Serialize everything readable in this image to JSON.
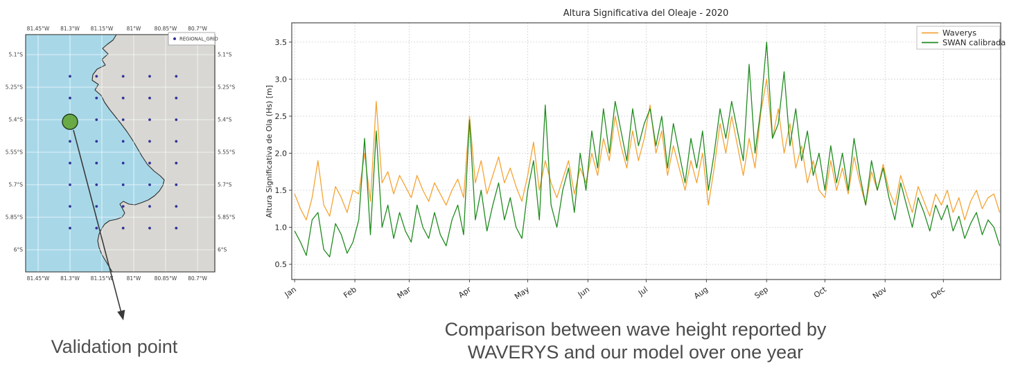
{
  "map": {
    "legend_label": "REGIONAL_GRID",
    "lon_ticks": [
      "81.45°W",
      "81.3°W",
      "81.15°W",
      "81°W",
      "80.85°W",
      "80.7°W"
    ],
    "lat_ticks": [
      "5.1°S",
      "5.25°S",
      "5.4°S",
      "5.55°S",
      "5.7°S",
      "5.85°S",
      "6°S"
    ],
    "grid_points": {
      "lons_west": [
        81.3,
        81.175,
        81.05,
        80.925,
        80.8
      ],
      "lats_south": [
        5.2,
        5.3,
        5.4,
        5.5,
        5.6,
        5.7,
        5.8,
        5.9
      ]
    },
    "validation_point": {
      "lon_west": 81.3,
      "lat_south": 5.4
    },
    "colors": {
      "ocean": "#a8d8e8",
      "land": "#d8d7d3",
      "coastline": "#2b2b2b",
      "grid_dot": "#33339b",
      "validation_fill": "#6aaa46",
      "validation_stroke": "#1f3a1f"
    }
  },
  "annotation": {
    "label": "Validation point"
  },
  "caption": {
    "line1": "Comparison between wave height reported by",
    "line2": "WAVERYS and our model over one year"
  },
  "chart_data": {
    "type": "line",
    "title": "Altura Significativa del Oleaje - 2020",
    "xlabel": "",
    "ylabel": "Altura Significativa de Ola (Hs) [m]",
    "legend_position": "upper right",
    "grid": "dotted",
    "x_tick_labels": [
      "Jan",
      "Feb",
      "Mar",
      "Apr",
      "May",
      "Jun",
      "Jul",
      "Aug",
      "Sep",
      "Oct",
      "Nov",
      "Dec"
    ],
    "x_tick_days": [
      0,
      31,
      59,
      90,
      120,
      151,
      181,
      212,
      243,
      273,
      304,
      334
    ],
    "y_ticks": [
      0.5,
      1.0,
      1.5,
      2.0,
      2.5,
      3.0,
      3.5
    ],
    "ylim": [
      0.295,
      3.76
    ],
    "xlim": [
      -1.5,
      363.5
    ],
    "x_unit": "day of year 2020",
    "day_step": 3,
    "series": [
      {
        "name": "Waverys",
        "color": "#f5a333",
        "values": [
          1.45,
          1.25,
          1.1,
          1.4,
          1.9,
          1.3,
          1.15,
          1.55,
          1.4,
          1.2,
          1.5,
          1.45,
          2.0,
          1.35,
          2.7,
          1.6,
          1.75,
          1.45,
          1.7,
          1.55,
          1.4,
          1.7,
          1.5,
          1.35,
          1.6,
          1.45,
          1.3,
          1.5,
          1.65,
          1.4,
          2.5,
          1.6,
          1.9,
          1.45,
          1.7,
          1.95,
          1.6,
          1.8,
          1.55,
          1.35,
          1.7,
          2.15,
          1.5,
          1.9,
          1.6,
          1.4,
          1.65,
          1.9,
          1.45,
          1.8,
          1.6,
          2.0,
          1.7,
          2.2,
          1.9,
          2.5,
          2.1,
          1.8,
          2.3,
          1.9,
          2.2,
          2.65,
          2.0,
          2.3,
          1.7,
          2.1,
          1.8,
          1.5,
          1.9,
          1.6,
          2.0,
          1.3,
          1.8,
          2.4,
          2.0,
          2.5,
          2.1,
          1.7,
          2.2,
          1.8,
          2.55,
          3.0,
          2.2,
          2.6,
          2.0,
          2.4,
          1.8,
          2.1,
          1.6,
          1.9,
          1.5,
          1.4,
          1.9,
          1.5,
          1.8,
          1.45,
          1.95,
          1.6,
          1.3,
          1.75,
          1.5,
          1.85,
          1.5,
          1.3,
          1.7,
          1.45,
          1.2,
          1.55,
          1.35,
          1.15,
          1.45,
          1.3,
          1.5,
          1.2,
          1.4,
          1.1,
          1.35,
          1.5,
          1.25,
          1.4,
          1.45,
          1.2
        ]
      },
      {
        "name": "SWAN calibrada",
        "color": "#1f8b1f",
        "values": [
          0.95,
          0.8,
          0.62,
          1.1,
          1.2,
          0.7,
          0.6,
          1.05,
          0.9,
          0.65,
          0.8,
          1.1,
          2.2,
          0.9,
          2.3,
          1.0,
          1.3,
          0.85,
          1.2,
          0.95,
          0.8,
          1.3,
          1.0,
          0.85,
          1.2,
          0.9,
          0.75,
          1.1,
          1.3,
          0.9,
          2.45,
          1.1,
          1.5,
          0.95,
          1.3,
          1.6,
          1.1,
          1.4,
          1.0,
          0.85,
          1.5,
          1.9,
          1.1,
          2.65,
          1.3,
          1.0,
          1.5,
          1.8,
          1.2,
          2.0,
          1.5,
          2.3,
          1.8,
          2.6,
          2.0,
          2.7,
          2.3,
          1.9,
          2.6,
          2.1,
          2.4,
          2.6,
          2.1,
          2.5,
          1.8,
          2.4,
          2.0,
          1.6,
          2.2,
          1.8,
          2.3,
          1.5,
          2.0,
          2.6,
          2.2,
          2.7,
          2.3,
          1.9,
          3.2,
          2.0,
          2.6,
          3.5,
          2.2,
          2.4,
          3.1,
          2.1,
          2.6,
          1.9,
          2.3,
          1.7,
          2.0,
          1.5,
          2.1,
          1.6,
          2.0,
          1.5,
          2.2,
          1.7,
          1.3,
          1.9,
          1.5,
          1.8,
          1.4,
          1.1,
          1.6,
          1.3,
          1.0,
          1.4,
          1.2,
          0.95,
          1.3,
          1.1,
          1.3,
          0.95,
          1.15,
          0.85,
          1.05,
          1.2,
          0.9,
          1.1,
          1.0,
          0.75
        ]
      }
    ]
  }
}
